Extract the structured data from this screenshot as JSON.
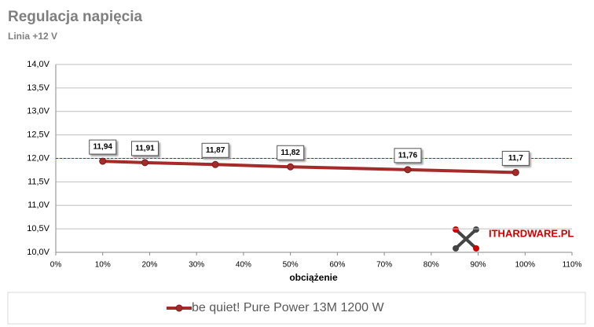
{
  "chart_data": {
    "type": "line",
    "title": "Regulacja napięcia",
    "subtitle": "Linia +12 V",
    "x_label": "obciążenie",
    "logo": "ITHARDWARE.PL",
    "x": [
      10,
      19,
      34,
      50,
      75,
      98
    ],
    "series": [
      {
        "name": "be quiet! Pure Power 13M 1200 W",
        "color": "#a52a2a",
        "values": [
          11.94,
          11.91,
          11.87,
          11.82,
          11.76,
          11.7
        ],
        "value_labels": [
          "11,94",
          "11,91",
          "11,87",
          "11,82",
          "11,76",
          "11,7"
        ]
      }
    ],
    "xlim": [
      0,
      110
    ],
    "xticks": [
      {
        "value": 0,
        "label": "0%"
      },
      {
        "value": 10,
        "label": "10%"
      },
      {
        "value": 20,
        "label": "20%"
      },
      {
        "value": 30,
        "label": "30%"
      },
      {
        "value": 40,
        "label": "40%"
      },
      {
        "value": 50,
        "label": "50%"
      },
      {
        "value": 60,
        "label": "60%"
      },
      {
        "value": 70,
        "label": "70%"
      },
      {
        "value": 80,
        "label": "80%"
      },
      {
        "value": 90,
        "label": "90%"
      },
      {
        "value": 100,
        "label": "100%"
      },
      {
        "value": 110,
        "label": "110%"
      }
    ],
    "ylim": [
      10,
      14
    ],
    "yticks": [
      {
        "value": 10,
        "label": "10,0V"
      },
      {
        "value": 10.5,
        "label": "10,5V"
      },
      {
        "value": 11,
        "label": "11,0V"
      },
      {
        "value": 11.5,
        "label": "11,5V"
      },
      {
        "value": 12,
        "label": "12,0V"
      },
      {
        "value": 12.5,
        "label": "12,5V"
      },
      {
        "value": 13,
        "label": "13,0V"
      },
      {
        "value": 13.5,
        "label": "13,5V"
      },
      {
        "value": 14,
        "label": "14,0V"
      }
    ],
    "reference_line": 12,
    "reference_color": "#e00000",
    "grid": true
  }
}
